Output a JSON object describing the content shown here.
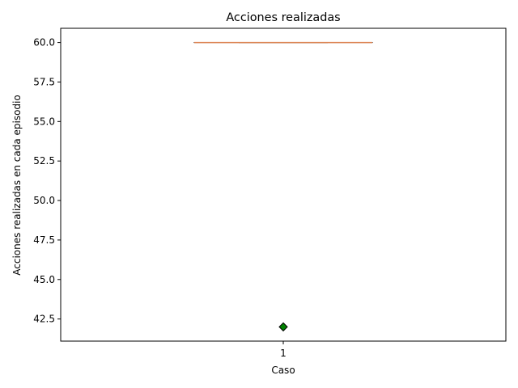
{
  "chart_data": {
    "type": "boxplot",
    "title": "Acciones realizadas",
    "xlabel": "Caso",
    "ylabel": "Acciones realizadas en cada episodio",
    "categories": [
      "1"
    ],
    "ylim": [
      41.1,
      60.9
    ],
    "yticks": [
      "42.5",
      "45.0",
      "47.5",
      "50.0",
      "52.5",
      "55.0",
      "57.5",
      "60.0"
    ],
    "grid": false,
    "boxes": [
      {
        "category": "1",
        "min": 60.0,
        "q1": 60.0,
        "median": 60.0,
        "q3": 60.0,
        "max": 60.0,
        "outliers": [
          42.0
        ]
      }
    ],
    "colors": {
      "box": "#000000",
      "median": "#dd8452",
      "whisker": "#000000",
      "outlier_fill": "#008000",
      "outlier_edge": "#000000"
    }
  }
}
